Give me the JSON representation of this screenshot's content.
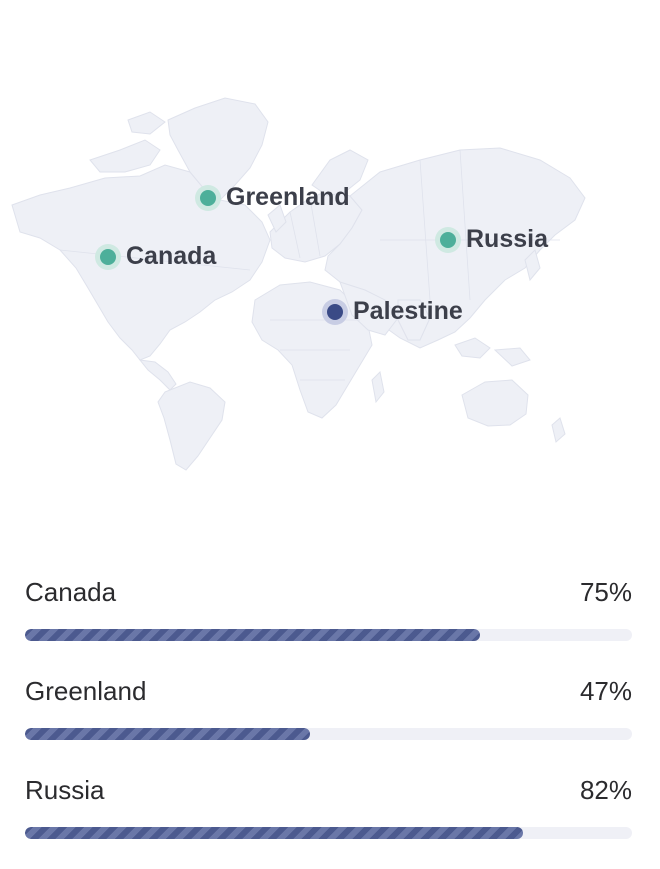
{
  "map": {
    "markers": [
      {
        "name": "Greenland",
        "color": "#4daf9a",
        "halo": "#cfe9e2"
      },
      {
        "name": "Canada",
        "color": "#4daf9a",
        "halo": "#cfe9e2"
      },
      {
        "name": "Russia",
        "color": "#4daf9a",
        "halo": "#cfe9e2"
      },
      {
        "name": "Palestine",
        "color": "#3a4a86",
        "halo": "#c8cde4"
      }
    ]
  },
  "stats": [
    {
      "country": "Canada",
      "percent_label": "75%",
      "value": 0.75
    },
    {
      "country": "Greenland",
      "percent_label": "47%",
      "value": 0.47
    },
    {
      "country": "Russia",
      "percent_label": "82%",
      "value": 0.82
    }
  ],
  "colors": {
    "bar_fill": "#4c5a8f",
    "bar_stripe": "#6a77a8",
    "bar_track": "#eff0f6",
    "land": "#eef0f6"
  }
}
